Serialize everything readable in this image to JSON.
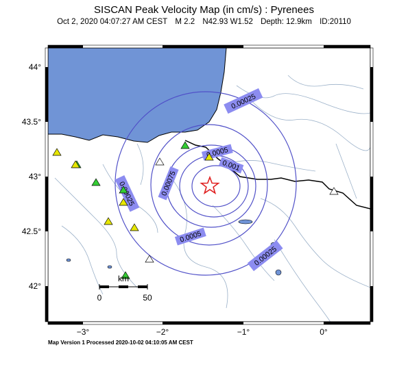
{
  "map": {
    "title": "SISCAN Peak Velocity Map (in cm/s) : Pyrenees",
    "event": {
      "date": "Oct  2, 2020 04:07:27 AM CEST",
      "magnitude": "M 2.2",
      "location": "N42.93 W1.52",
      "depth": "Depth: 12.9km",
      "id": "ID:20110"
    },
    "footer": "Map Version 1 Processed 2020-10-02 04:10:05 AM CEST",
    "lat_ticks": [
      "44°",
      "43.5°",
      "43°",
      "42.5°",
      "42°"
    ],
    "lon_ticks": [
      "−3°",
      "−2°",
      "−1°",
      "0°"
    ],
    "contours": [
      "0.00025",
      "0.0005",
      "0.00075",
      "0.001"
    ],
    "contour_labels": [
      "0.00025",
      "0.00025",
      "0.00025",
      "0.0005",
      "0.0005",
      "0.00075",
      "0.001"
    ],
    "scale_bar": {
      "unit": "km",
      "start": "0",
      "end": "50"
    },
    "colors": {
      "sea": "#7094d6",
      "contour": "#5050c8",
      "contour_label_bg": "#8c8cf0",
      "epicenter": "#e02020",
      "station_green": "#33cc33",
      "station_yellow": "#e6e600",
      "station_white": "#ffffff",
      "rivers": "#9ab0c8",
      "border": "#000000"
    }
  }
}
